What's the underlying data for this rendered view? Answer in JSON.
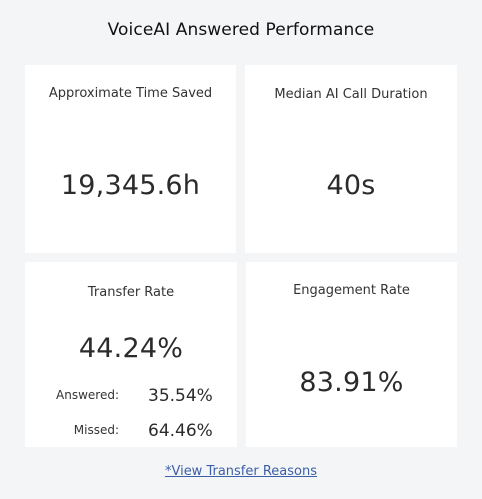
{
  "title": "VoiceAI Answered Performance",
  "cards": {
    "time_saved": {
      "label": "Approximate Time Saved",
      "value": "19,345.6h"
    },
    "median_duration": {
      "label": "Median AI Call Duration",
      "value": "40s"
    },
    "transfer_rate": {
      "label": "Transfer Rate",
      "value": "44.24%",
      "answered_label": "Answered:",
      "answered_value": "35.54%",
      "missed_label": "Missed:",
      "missed_value": "64.46%"
    },
    "engagement_rate": {
      "label": "Engagement Rate",
      "value": "83.91%"
    }
  },
  "link": {
    "label": "*View Transfer Reasons"
  },
  "colors": {
    "background": "#f4f5f7",
    "card": "#ffffff",
    "link": "#3b5fa8"
  }
}
